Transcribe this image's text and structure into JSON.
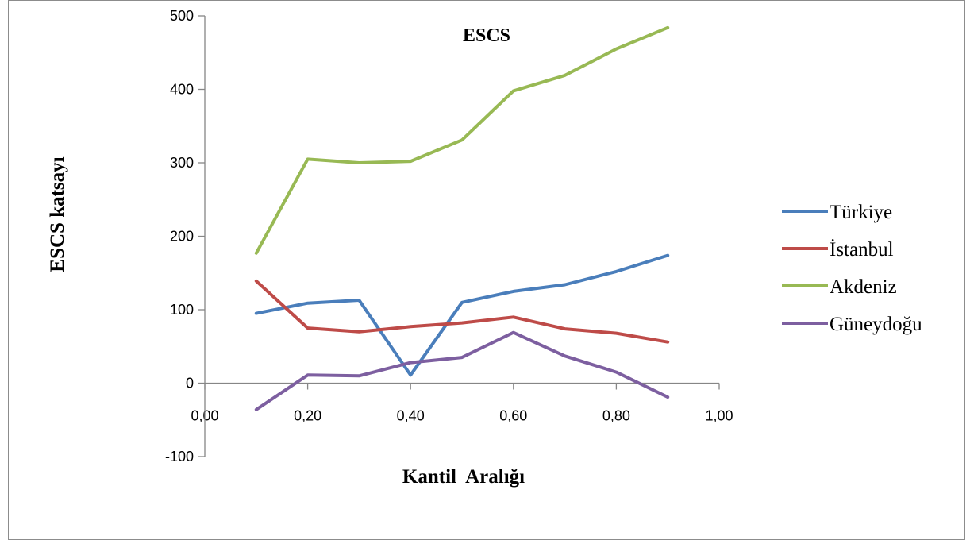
{
  "chart_data": {
    "type": "line",
    "title": "ESCS",
    "xlabel": "Kantil  Aralığı",
    "ylabel": "ESCS katsayı",
    "xlim": [
      0,
      1
    ],
    "ylim": [
      -100,
      500
    ],
    "x_ticks": [
      "0,00",
      "0,20",
      "0,40",
      "0,60",
      "0,80",
      "1,00"
    ],
    "x_tick_values": [
      0,
      0.2,
      0.4,
      0.6,
      0.8,
      1.0
    ],
    "y_ticks": [
      "-100",
      "0",
      "100",
      "200",
      "300",
      "400",
      "500"
    ],
    "y_tick_values": [
      -100,
      0,
      100,
      200,
      300,
      400,
      500
    ],
    "grid": false,
    "legend_position": "right",
    "x": [
      0.1,
      0.2,
      0.3,
      0.4,
      0.5,
      0.6,
      0.7,
      0.8,
      0.9
    ],
    "series": [
      {
        "name": "Türkiye",
        "color": "#4a7ebb",
        "values": [
          95,
          109,
          113,
          11,
          110,
          125,
          134,
          152,
          174
        ]
      },
      {
        "name": "İstanbul",
        "color": "#be4b48",
        "values": [
          139,
          75,
          70,
          77,
          82,
          90,
          74,
          68,
          56
        ]
      },
      {
        "name": "Akdeniz",
        "color": "#98b954",
        "values": [
          177,
          305,
          300,
          302,
          331,
          398,
          419,
          455,
          484
        ]
      },
      {
        "name": "Güneydoğu",
        "color": "#7d5fa0",
        "values": [
          -36,
          11,
          10,
          28,
          35,
          69,
          37,
          15,
          -19
        ]
      }
    ]
  }
}
